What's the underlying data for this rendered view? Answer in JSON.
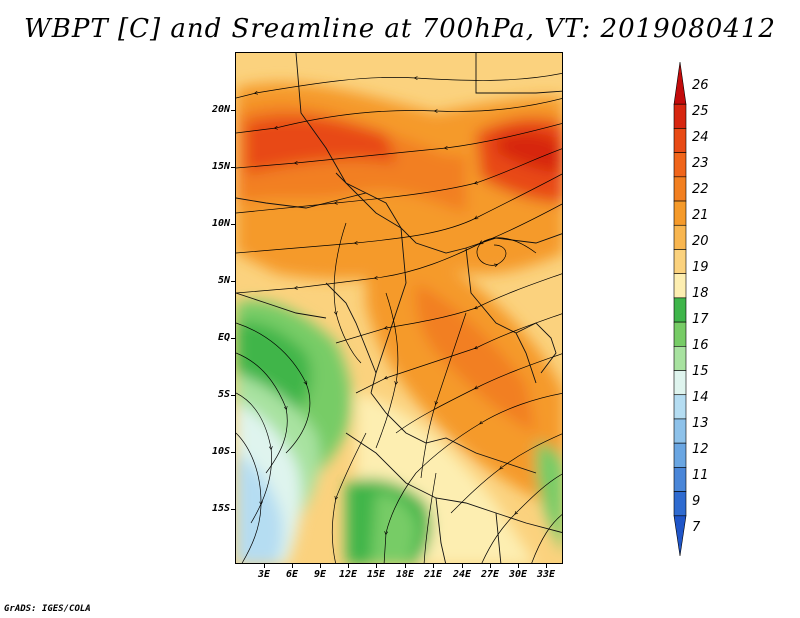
{
  "title": "WBPT [C] and Sreamline at 700hPa, VT: 2019080412",
  "footer": "GrADS: IGES/COLA",
  "map": {
    "lat_labels": [
      "20N",
      "15N",
      "10N",
      "5N",
      "EQ",
      "5S",
      "10S",
      "15S"
    ],
    "lon_labels": [
      "3E",
      "6E",
      "9E",
      "12E",
      "15E",
      "18E",
      "21E",
      "24E",
      "27E",
      "30E",
      "33E"
    ]
  },
  "colorbar": {
    "labels": [
      "26",
      "25",
      "24",
      "23",
      "22",
      "21",
      "20",
      "19",
      "18",
      "17",
      "16",
      "15",
      "14",
      "13",
      "12",
      "11",
      "9",
      "7"
    ],
    "colors": [
      "#c20b0b",
      "#d7260f",
      "#e84a15",
      "#f0651a",
      "#f27f20",
      "#f59a2a",
      "#f8b650",
      "#fbd27e",
      "#fdeeb1",
      "#3fb54a",
      "#77cc66",
      "#a8e2a0",
      "#dff4ee",
      "#b5ddf2",
      "#8ec2ea",
      "#6aa6e2",
      "#4a86d8",
      "#2f6bd0",
      "#1f55c8"
    ]
  }
}
